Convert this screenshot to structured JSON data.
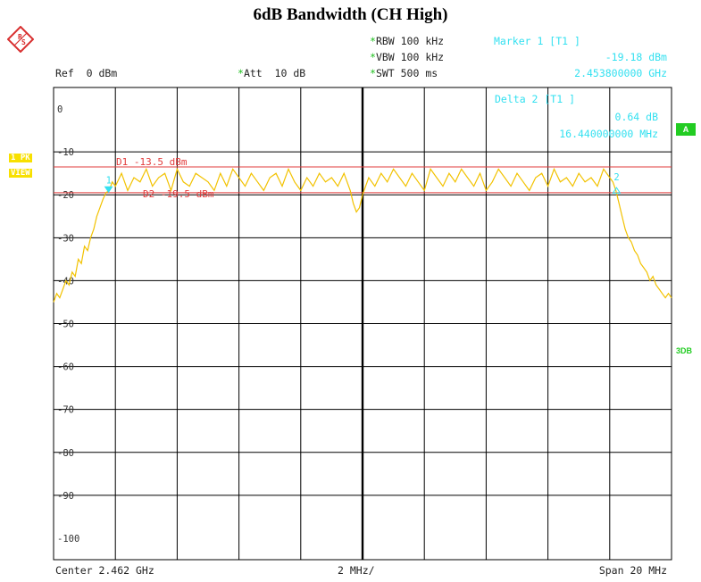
{
  "chart_data": {
    "type": "line",
    "title": "6dB Bandwidth (CH High)",
    "header": {
      "ref": "Ref  0 dBm",
      "att": "Att  10 dB",
      "rbw": "RBW 100 kHz",
      "vbw": "VBW 100 kHz",
      "swt": "SWT 500 ms"
    },
    "marker1": {
      "label": "Marker 1 [T1 ]",
      "level": "-19.18 dBm",
      "freq": "2.453800000 GHz"
    },
    "delta2": {
      "label": "Delta 2 [T1 ]",
      "level": "0.64 dB",
      "freq": "16.440000000 MHz"
    },
    "footer": {
      "center": "Center 2.462 GHz",
      "per_div": "2 MHz/",
      "span": "Span 20 MHz"
    },
    "side_tags": {
      "pk": "1 PK",
      "view": "VIEW",
      "a": "A",
      "three_db": "3DB"
    },
    "xlim": [
      -10,
      10
    ],
    "ylim": [
      -105,
      5
    ],
    "y_ticks": [
      0,
      -10,
      -20,
      -30,
      -40,
      -50,
      -60,
      -70,
      -80,
      -90,
      -100
    ],
    "y_tick_labels": [
      "0",
      "-10",
      "-20",
      "-30",
      "-40",
      "-50",
      "-60",
      "-70",
      "-80",
      "-90",
      "-100"
    ],
    "lines": [
      {
        "label": "D1 -13.5 dBm",
        "level": -13.5,
        "color": "#e23b3b"
      },
      {
        "label": "D2 -19.5 dBm",
        "level": -19.5,
        "color": "#e23b3b"
      }
    ],
    "markers": [
      {
        "label": "1",
        "x": -8.22,
        "y": -19.18,
        "shape": "down",
        "color": "#33e0f0"
      },
      {
        "label": "2",
        "x": 8.22,
        "y": -18.54,
        "shape": "up",
        "color": "#33e0f0"
      }
    ],
    "trace_color": "#f2c200",
    "series": [
      {
        "x": [
          -10.0,
          -9.9,
          -9.8,
          -9.7,
          -9.6,
          -9.5,
          -9.4,
          -9.3,
          -9.2,
          -9.1,
          -9.0,
          -8.9,
          -8.8,
          -8.7,
          -8.6,
          -8.5,
          -8.4,
          -8.3,
          -8.2,
          -8.1,
          -8.0,
          -7.8,
          -7.6,
          -7.4,
          -7.2,
          -7.0,
          -6.8,
          -6.6,
          -6.4,
          -6.2,
          -6.0,
          -5.8,
          -5.6,
          -5.4,
          -5.2,
          -5.0,
          -4.8,
          -4.6,
          -4.4,
          -4.2,
          -4.0,
          -3.8,
          -3.6,
          -3.4,
          -3.2,
          -3.0,
          -2.8,
          -2.6,
          -2.4,
          -2.2,
          -2.0,
          -1.8,
          -1.6,
          -1.4,
          -1.2,
          -1.0,
          -0.8,
          -0.6,
          -0.4,
          -0.3,
          -0.2,
          -0.1,
          0.0,
          0.2,
          0.4,
          0.6,
          0.8,
          1.0,
          1.2,
          1.4,
          1.6,
          1.8,
          2.0,
          2.2,
          2.4,
          2.6,
          2.8,
          3.0,
          3.2,
          3.4,
          3.6,
          3.8,
          4.0,
          4.2,
          4.4,
          4.6,
          4.8,
          5.0,
          5.2,
          5.4,
          5.6,
          5.8,
          6.0,
          6.2,
          6.4,
          6.6,
          6.8,
          7.0,
          7.2,
          7.4,
          7.6,
          7.8,
          8.0,
          8.1,
          8.2,
          8.3,
          8.4,
          8.5,
          8.6,
          8.7,
          8.8,
          8.9,
          9.0,
          9.1,
          9.2,
          9.3,
          9.4,
          9.5,
          9.6,
          9.7,
          9.8,
          9.9,
          10.0
        ],
        "y": [
          -45,
          -43,
          -44,
          -42,
          -40,
          -41,
          -38,
          -39,
          -35,
          -36,
          -32,
          -33,
          -30,
          -28,
          -25,
          -23,
          -21,
          -19.5,
          -19,
          -17,
          -18,
          -15,
          -19,
          -16,
          -17,
          -14,
          -18,
          -16,
          -15,
          -19,
          -14,
          -17,
          -18,
          -15,
          -16,
          -17,
          -19,
          -15,
          -18,
          -14,
          -16,
          -18,
          -15,
          -17,
          -19,
          -16,
          -15,
          -18,
          -14,
          -17,
          -19,
          -16,
          -18,
          -15,
          -17,
          -16,
          -18,
          -15,
          -19,
          -22,
          -24,
          -23,
          -20,
          -16,
          -18,
          -15,
          -17,
          -14,
          -16,
          -18,
          -15,
          -17,
          -19,
          -14,
          -16,
          -18,
          -15,
          -17,
          -14,
          -16,
          -18,
          -15,
          -19,
          -17,
          -14,
          -16,
          -18,
          -15,
          -17,
          -19,
          -16,
          -15,
          -18,
          -14,
          -17,
          -16,
          -18,
          -15,
          -17,
          -16,
          -18,
          -14,
          -16,
          -17,
          -19,
          -22,
          -25,
          -28,
          -30,
          -31,
          -33,
          -34,
          -36,
          -37,
          -38,
          -40,
          -39,
          -41,
          -42,
          -43,
          -44,
          -43,
          -44
        ]
      }
    ]
  }
}
